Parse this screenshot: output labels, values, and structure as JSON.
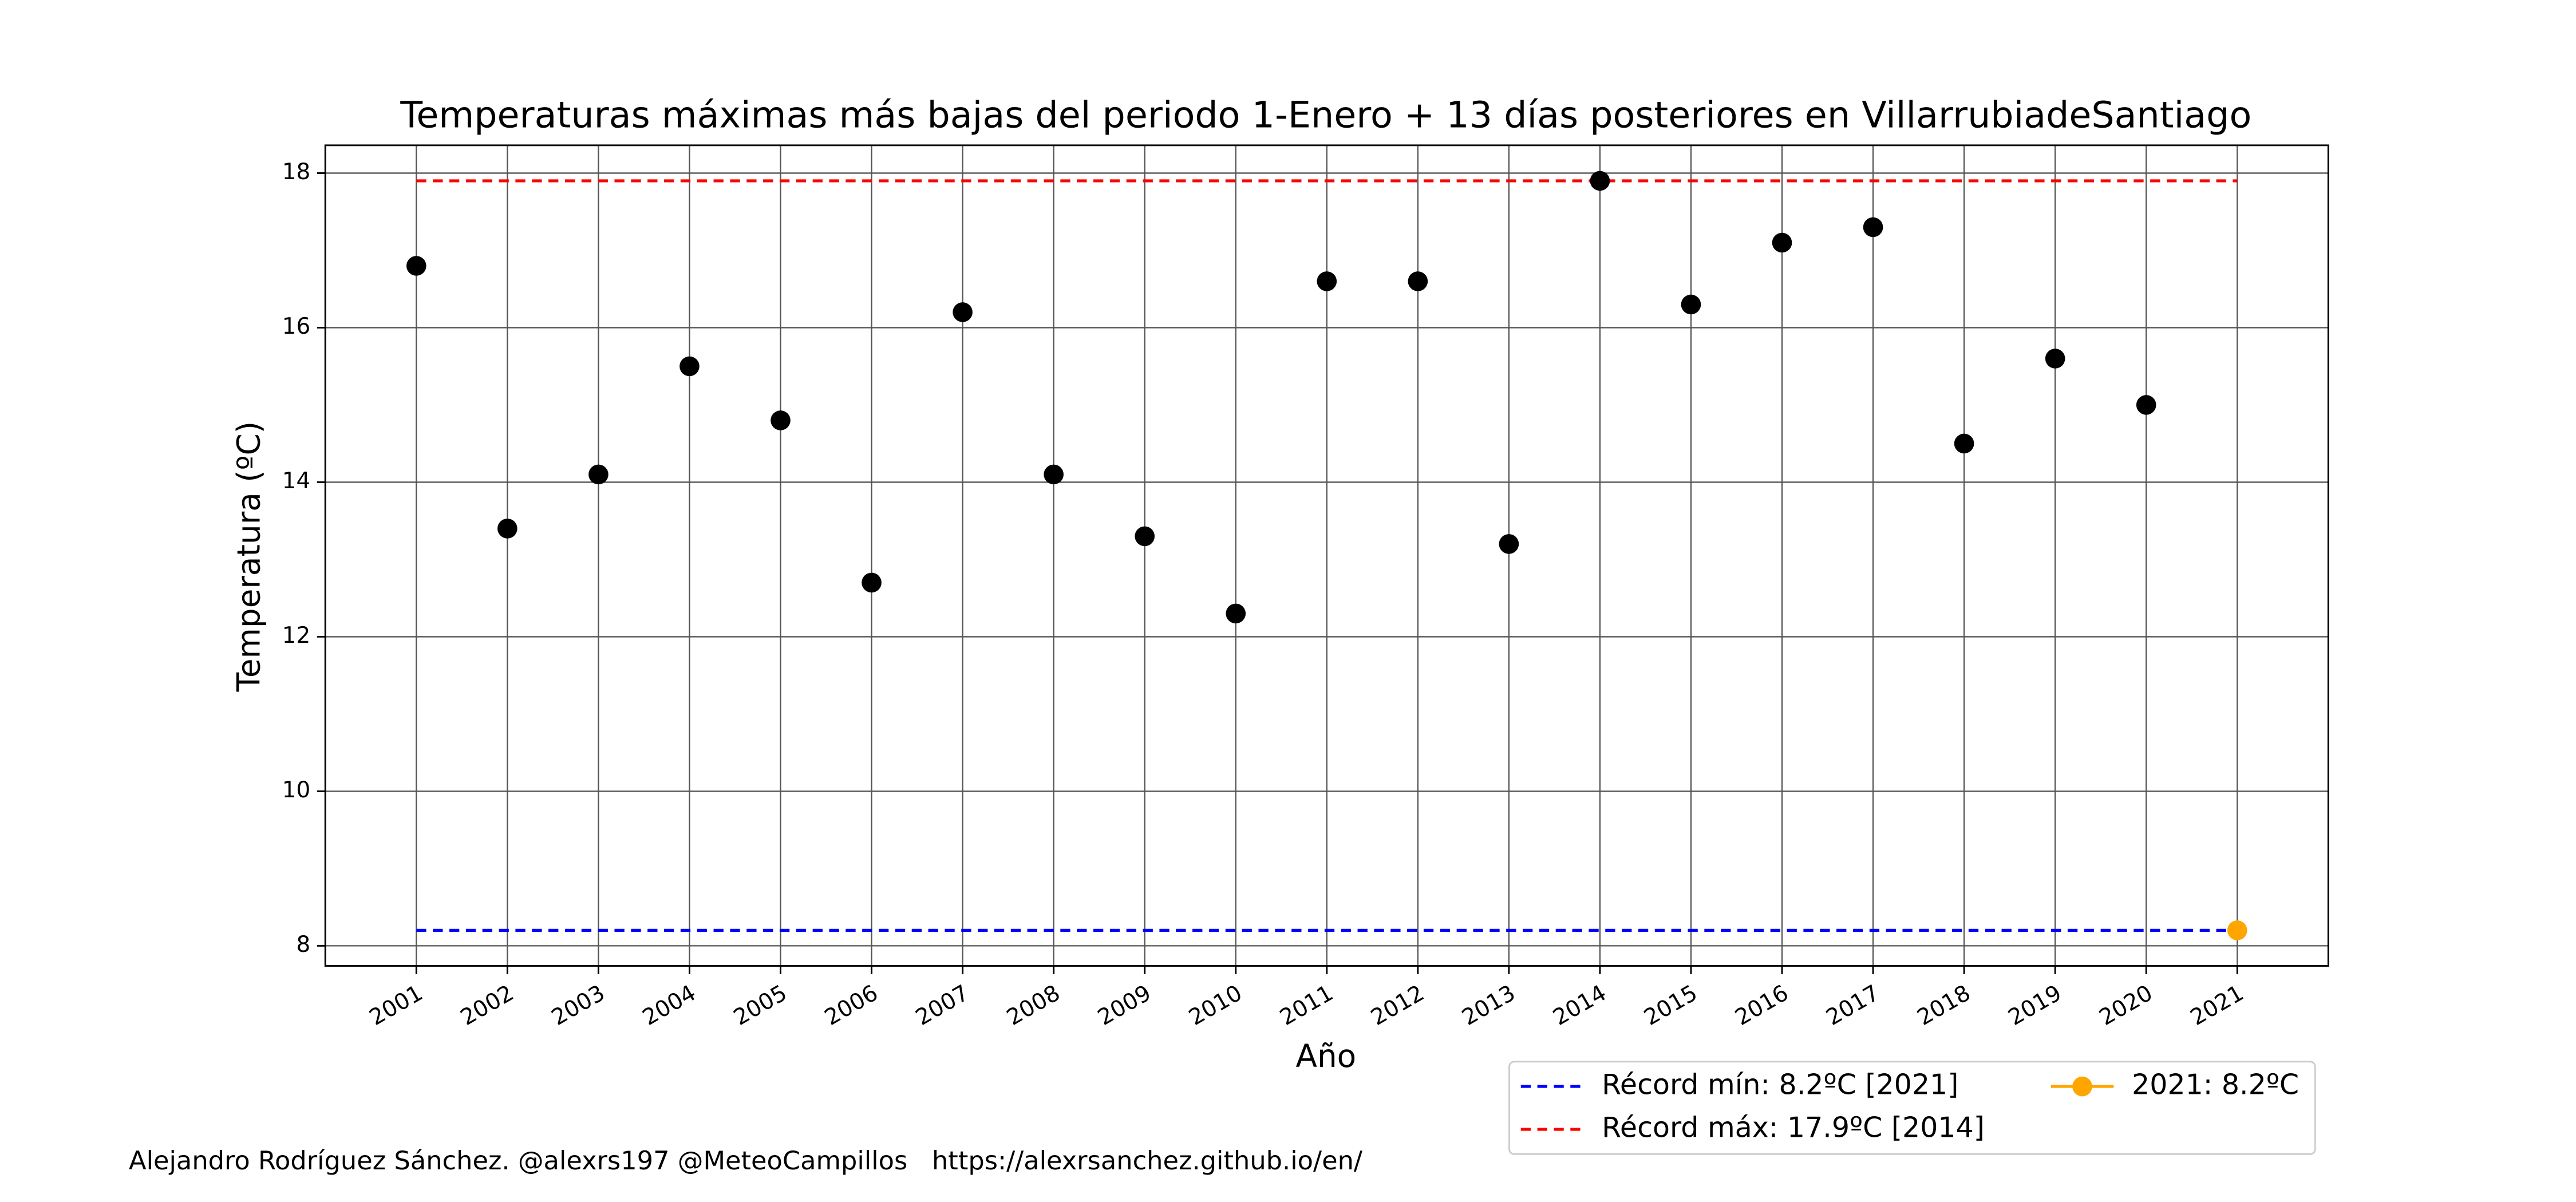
{
  "chart_data": {
    "type": "scatter",
    "title": "Temperaturas máximas más bajas del periodo 1-Enero + 13 días posteriores en VillarrubiadeSantiago",
    "xlabel": "Año",
    "ylabel": "Temperatura (ºC)",
    "x": [
      2001,
      2002,
      2003,
      2004,
      2005,
      2006,
      2007,
      2008,
      2009,
      2010,
      2011,
      2012,
      2013,
      2014,
      2015,
      2016,
      2017,
      2018,
      2019,
      2020,
      2021
    ],
    "series": [
      {
        "color": "#000000",
        "values": [
          16.8,
          13.4,
          14.1,
          15.5,
          14.8,
          12.7,
          16.2,
          14.1,
          13.3,
          12.3,
          16.6,
          16.6,
          13.2,
          17.9,
          16.3,
          17.1,
          17.3,
          14.5,
          15.6,
          15.0,
          null
        ]
      },
      {
        "name": "2021: 8.2ºC",
        "color": "#ffa500",
        "values": [
          null,
          null,
          null,
          null,
          null,
          null,
          null,
          null,
          null,
          null,
          null,
          null,
          null,
          null,
          null,
          null,
          null,
          null,
          null,
          null,
          8.2
        ]
      }
    ],
    "hlines": [
      {
        "name": "Récord mín: 8.2ºC [2021]",
        "color": "#0000ff",
        "value": 8.2
      },
      {
        "name": "Récord máx: 17.9ºC [2014]",
        "color": "#ff0000",
        "value": 17.9
      }
    ],
    "xlim": [
      2000,
      2022
    ],
    "ylim": [
      7.74,
      18.36
    ],
    "xticks": [
      2001,
      2002,
      2003,
      2004,
      2005,
      2006,
      2007,
      2008,
      2009,
      2010,
      2011,
      2012,
      2013,
      2014,
      2015,
      2016,
      2017,
      2018,
      2019,
      2020,
      2021
    ],
    "yticks": [
      8,
      10,
      12,
      14,
      16,
      18
    ],
    "grid": true,
    "legend_position": "lower right",
    "credit": "Alejandro Rodríguez Sánchez. @alexrs197 @MeteoCampillos   https://alexrsanchez.github.io/en/"
  }
}
